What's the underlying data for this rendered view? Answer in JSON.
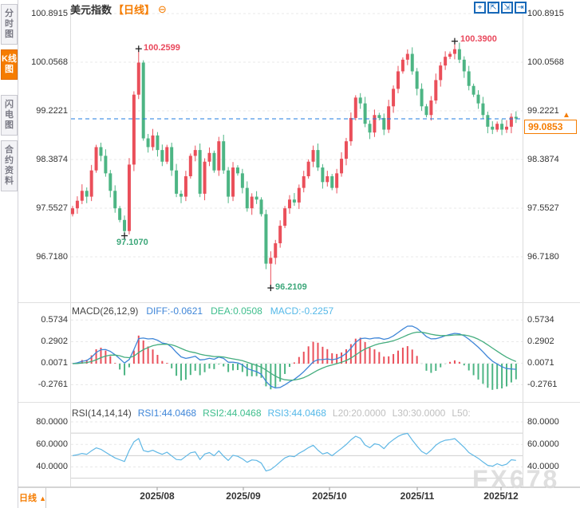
{
  "sidebar": {
    "tabs": [
      {
        "label": "分时图",
        "active": false
      },
      {
        "label": "K线图",
        "active": true
      },
      {
        "label": "闪电图",
        "active": false
      },
      {
        "label": "合约资料",
        "active": false
      }
    ]
  },
  "header": {
    "title": "美元指数",
    "period_tag": "【日线】",
    "collapse_icon": "⊖"
  },
  "toolbar": {
    "icons": [
      {
        "name": "crosshair-move-icon",
        "glyph": "⌖"
      },
      {
        "name": "zoom-axis-in-icon",
        "glyph": "⇱"
      },
      {
        "name": "zoom-axis-out-icon",
        "glyph": "⇲"
      },
      {
        "name": "pan-right-icon",
        "glyph": "⇥"
      }
    ]
  },
  "main_chart": {
    "price_axis": [
      "100.8915",
      "100.0568",
      "99.2221",
      "98.3874",
      "97.5527",
      "96.7180"
    ],
    "high_label_1": "100.2599",
    "low_label_1": "97.1070",
    "low_label_2": "96.2109",
    "high_label_2": "100.3900",
    "current_price": "99.0853",
    "price_up_arrow": "▲"
  },
  "macd_panel": {
    "title": "MACD(26,12,9)",
    "diff_label": "DIFF:-0.0621",
    "dea_label": "DEA:0.0508",
    "macd_label": "MACD:-0.2257",
    "axis": [
      "0.5734",
      "0.2902",
      "0.0071",
      "-0.2761"
    ]
  },
  "rsi_panel": {
    "title": "RSI(14,14,14)",
    "rsi1_label": "RSI1:44.0468",
    "rsi2_label": "RSI2:44.0468",
    "rsi3_label": "RSI3:44.0468",
    "l20_label": "L20:20.0000",
    "l30_label": "L30:30.0000",
    "l50_label": "L50:",
    "axis": [
      "80.0000",
      "60.0000",
      "40.0000"
    ]
  },
  "x_axis": {
    "labels": [
      "2025/08",
      "2025/09",
      "2025/10",
      "2025/11",
      "2025/12"
    ],
    "period_label": "日线",
    "period_arrow": "▲"
  },
  "watermark": "FX678",
  "colors": {
    "up_candle": "#ea4f5a",
    "down_candle": "#4db584",
    "diff_line": "#3f86d8",
    "dea_line": "#44ad7e",
    "rsi_line": "#5fb7e5",
    "accent_orange": "#f57c00",
    "current_price_line": "#1f7be0",
    "annotation_red": "#e9485c",
    "annotation_green": "#3da77a"
  },
  "chart_data": [
    {
      "id": "price",
      "type": "candlestick",
      "title": "美元指数 日线 (US Dollar Index, daily)",
      "x_labels": [
        "2025/08",
        "2025/09",
        "2025/10",
        "2025/11",
        "2025/12"
      ],
      "ylim": [
        96.718,
        100.8915
      ],
      "axis_values": [
        100.8915,
        100.0568,
        99.2221,
        98.3874,
        97.5527,
        96.718
      ],
      "first_open": 97.45,
      "closes": [
        97.55,
        97.68,
        97.85,
        97.75,
        98.2,
        98.6,
        98.45,
        98.15,
        97.85,
        97.55,
        97.35,
        97.16,
        98.3,
        99.5,
        100.05,
        98.75,
        98.6,
        98.8,
        98.55,
        98.35,
        98.6,
        98.2,
        97.8,
        97.75,
        98.1,
        98.45,
        98.55,
        97.8,
        98.35,
        98.5,
        98.2,
        98.7,
        98.2,
        97.75,
        98.25,
        98.15,
        97.9,
        97.55,
        97.75,
        97.7,
        97.45,
        96.6,
        96.7,
        96.95,
        97.25,
        97.55,
        97.7,
        97.65,
        97.9,
        98.1,
        98.35,
        98.55,
        98.25,
        98.0,
        98.1,
        97.9,
        98.15,
        98.4,
        98.7,
        99.1,
        99.45,
        99.35,
        99.0,
        98.85,
        99.15,
        99.1,
        98.9,
        99.3,
        99.6,
        99.9,
        100.1,
        100.2,
        99.9,
        99.6,
        99.3,
        99.15,
        99.4,
        99.75,
        100.0,
        100.15,
        100.2,
        100.28,
        100.1,
        99.9,
        99.65,
        99.5,
        99.35,
        99.15,
        98.95,
        98.9,
        99.0,
        98.9,
        98.95,
        99.12,
        99.09
      ],
      "key_points": {
        "11": {
          "low": 97.107
        },
        "14": {
          "high": 100.2599
        },
        "42": {
          "low": 96.2109
        },
        "81": {
          "high": 100.39
        }
      },
      "current_price": 99.0853
    },
    {
      "id": "macd",
      "type": "bar",
      "params": [
        26,
        12,
        9
      ],
      "derived_from": "price.closes (DIFF=EMA12-EMA26, DEA=EMA9(DIFF), bar=2*(DIFF-DEA))",
      "last_values": {
        "diff": -0.0621,
        "dea": 0.0508,
        "macd": -0.2257
      },
      "axis_values": [
        0.5734,
        0.2902,
        0.0071,
        -0.2761
      ]
    },
    {
      "id": "rsi",
      "type": "line",
      "params": [
        14,
        14,
        14
      ],
      "derived_from": "price.closes (Wilder RSI-14; RSI1=RSI2=RSI3)",
      "last_values": {
        "rsi1": 44.0468,
        "rsi2": 44.0468,
        "rsi3": 44.0468
      },
      "levels": [
        20,
        30,
        50
      ],
      "solid_lines": [
        70,
        50,
        30
      ],
      "axis_values": [
        80,
        60,
        40
      ]
    }
  ]
}
